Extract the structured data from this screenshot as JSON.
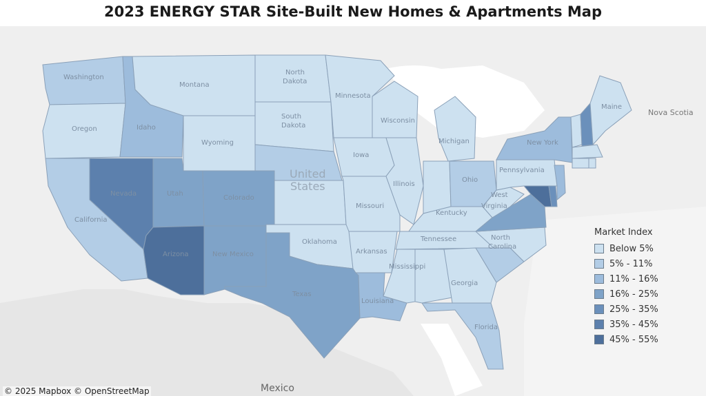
{
  "title": "2023 ENERGY STAR Site-Built New Homes & Apartments Map",
  "map": {
    "country_label_line1": "United",
    "country_label_line2": "States",
    "neighbor_labels": {
      "mexico": "Mexico",
      "nova_scotia": "Nova Scotia"
    },
    "attribution": "© 2025 Mapbox  © OpenStreetMap",
    "state_labels": {
      "washington": "Washington",
      "oregon": "Oregon",
      "california": "California",
      "nevada": "Nevada",
      "idaho": "Idaho",
      "montana": "Montana",
      "wyoming": "Wyoming",
      "utah": "Utah",
      "colorado": "Colorado",
      "arizona": "Arizona",
      "new_mexico": "New Mexico",
      "north_dakota_1": "North",
      "north_dakota_2": "Dakota",
      "south_dakota_1": "South",
      "south_dakota_2": "Dakota",
      "nebraska": "",
      "kansas": "",
      "oklahoma": "Oklahoma",
      "texas": "Texas",
      "minnesota": "Minnesota",
      "iowa": "Iowa",
      "missouri": "Missouri",
      "arkansas": "Arkansas",
      "louisiana": "Louisiana",
      "wisconsin": "Wisconsin",
      "illinois": "Illinois",
      "mississippi": "Mississippi",
      "michigan": "Michigan",
      "indiana": "",
      "ohio": "Ohio",
      "kentucky": "Kentucky",
      "tennessee": "Tennessee",
      "alabama": "",
      "georgia": "Georgia",
      "florida": "Florida",
      "south_carolina": "",
      "north_carolina_1": "North",
      "north_carolina_2": "Carolina",
      "virginia": "",
      "west_virginia_1": "West",
      "west_virginia_2": "Virginia",
      "pennsylvania": "Pennsylvania",
      "new_york": "New York",
      "maine": "Maine"
    }
  },
  "legend": {
    "title": "Market Index",
    "items": [
      {
        "label": "Below 5%",
        "color": "#cde1f0"
      },
      {
        "label": "5% - 11%",
        "color": "#b3cde6"
      },
      {
        "label": "11% - 16%",
        "color": "#9dbcdc"
      },
      {
        "label": "16% - 25%",
        "color": "#7fa3c8"
      },
      {
        "label": "25% - 35%",
        "color": "#6b90bb"
      },
      {
        "label": "35% - 45%",
        "color": "#5c80ad"
      },
      {
        "label": "45% - 55%",
        "color": "#4d6f9b"
      }
    ]
  }
}
